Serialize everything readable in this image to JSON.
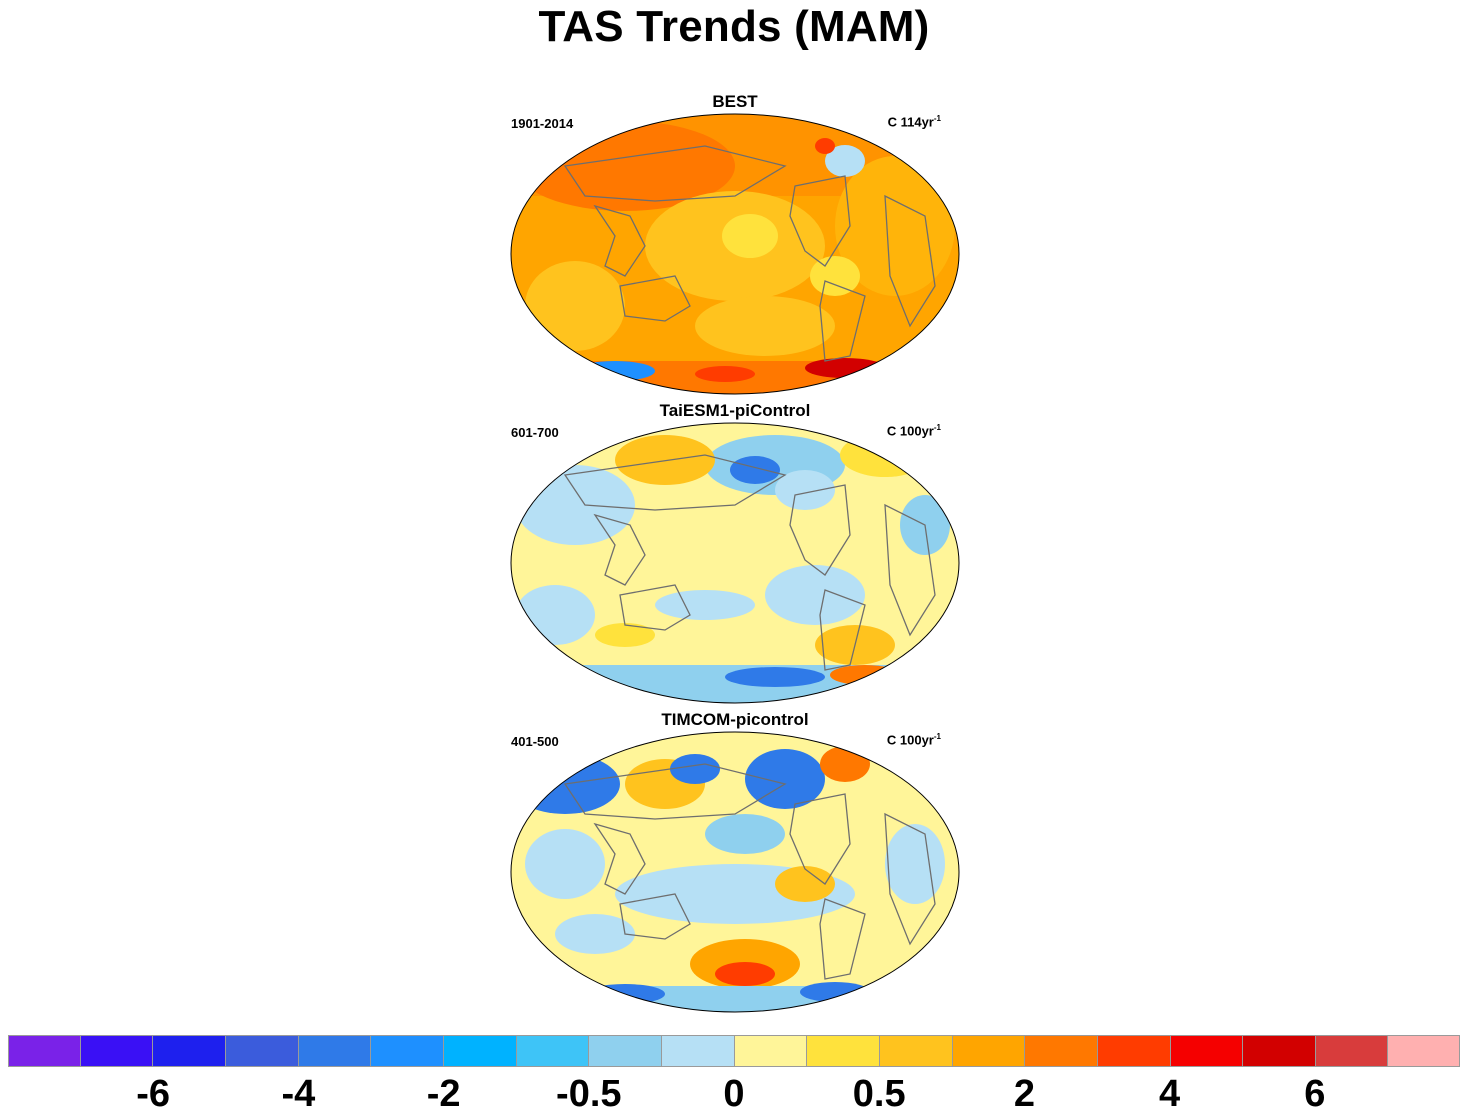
{
  "title": "TAS Trends (MAM)",
  "panels": [
    {
      "title": "BEST",
      "period": "1901-2014",
      "units_base": "C 114yr",
      "units_exp": "-1"
    },
    {
      "title": "TaiESM1-piControl",
      "period": "601-700",
      "units_base": "C 100yr",
      "units_exp": "-1"
    },
    {
      "title": "TIMCOM-picontrol",
      "period": "401-500",
      "units_base": "C 100yr",
      "units_exp": "-1"
    }
  ],
  "colorbar": {
    "colors": [
      "#7a22e8",
      "#3a10f5",
      "#1e20ee",
      "#3b5cdc",
      "#2f7ae8",
      "#1e90ff",
      "#00b2ff",
      "#3ec4f7",
      "#8fd0ee",
      "#b6e0f5",
      "#fff599",
      "#ffe23c",
      "#ffc31e",
      "#ffa500",
      "#ff7800",
      "#ff3c00",
      "#f50000",
      "#d20000",
      "#d83c3c",
      "#ffb0b0"
    ],
    "labels": [
      {
        "text": "-6",
        "after_box": 2
      },
      {
        "text": "-4",
        "after_box": 4
      },
      {
        "text": "-2",
        "after_box": 6
      },
      {
        "text": "-0.5",
        "after_box": 8
      },
      {
        "text": "0",
        "after_box": 10
      },
      {
        "text": "0.5",
        "after_box": 12
      },
      {
        "text": "2",
        "after_box": 14
      },
      {
        "text": "4",
        "after_box": 16
      },
      {
        "text": "6",
        "after_box": 18
      }
    ]
  }
}
